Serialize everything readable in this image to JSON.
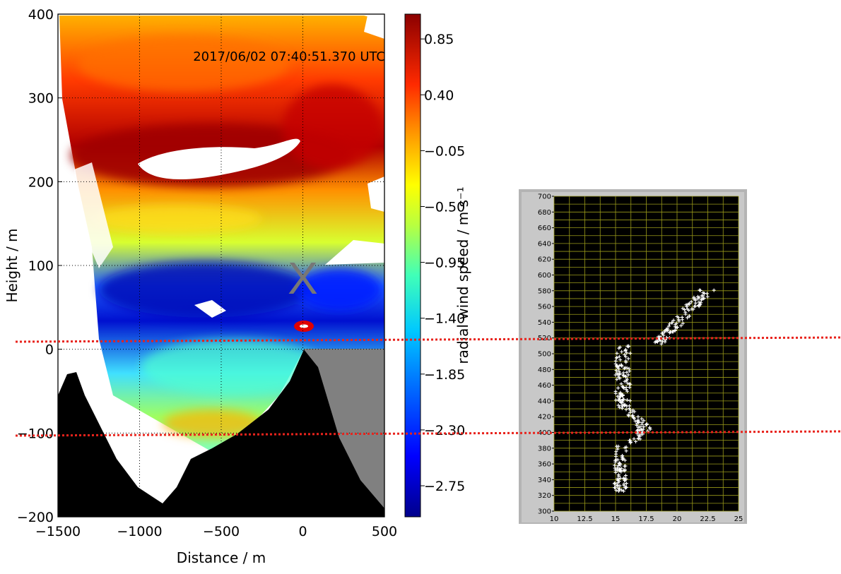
{
  "chart_data": [
    {
      "type": "heatmap",
      "title": "",
      "timestamp": "2017/06/02 07:40:51.370 UTC",
      "xlabel": "Distance / m",
      "ylabel": "Height / m",
      "xlim": [
        -1500,
        500
      ],
      "ylim": [
        -200,
        400
      ],
      "xticks": [
        -1500,
        -1000,
        -500,
        0,
        500
      ],
      "yticks": [
        -200,
        -100,
        0,
        100,
        200,
        300,
        400
      ],
      "xtick_labels": [
        "−1500",
        "−1000",
        "−500",
        "0",
        "500"
      ],
      "ytick_labels": [
        "−200",
        "−100",
        "0",
        "100",
        "200",
        "300",
        "400"
      ],
      "grid": true,
      "marker_label": "X",
      "marker_pos": {
        "distance": 0,
        "height": 85
      },
      "colorbar": {
        "label": "radial wind speed / m s⁻¹",
        "range": [
          -3.0,
          1.05
        ],
        "ticks": [
          0.85,
          0.4,
          -0.05,
          -0.5,
          -0.95,
          -1.4,
          -1.85,
          -2.3,
          -2.75
        ],
        "tick_labels": [
          "0.85",
          "0.40",
          "−0.05",
          "−0.50",
          "−0.95",
          "−1.40",
          "−1.85",
          "−2.30",
          "−2.75"
        ]
      },
      "reference_lines_height": [
        10,
        -100
      ],
      "colors": {
        "terrain": "#000000",
        "masked": "#808080",
        "ref_line": "#e8231c"
      }
    },
    {
      "type": "scatter",
      "xlim": [
        10,
        25
      ],
      "ylim": [
        300,
        700
      ],
      "xticks": [
        10,
        12.5,
        15,
        17.5,
        20,
        22.5,
        25
      ],
      "xtick_labels": [
        "10",
        "12.5",
        "15",
        "17.5",
        "20",
        "22.5",
        "25"
      ],
      "yticks": [
        300,
        320,
        340,
        360,
        380,
        400,
        420,
        440,
        460,
        480,
        500,
        520,
        540,
        560,
        580,
        600,
        620,
        640,
        660,
        680,
        700
      ],
      "ytick_labels": [
        "300",
        "320",
        "340",
        "360",
        "380",
        "400",
        "420",
        "440",
        "460",
        "480",
        "500",
        "520",
        "540",
        "560",
        "580",
        "600",
        "620",
        "640",
        "660",
        "680",
        "700"
      ],
      "marker": "+",
      "point_color": "#ffffff",
      "background": "#000000",
      "grid_color": "#9a9a1a",
      "clusters": [
        {
          "x_center": 15.4,
          "x_spread": 1.0,
          "y_from": 325,
          "y_to": 385
        },
        {
          "x_center": 16.3,
          "x_spread": 1.0,
          "y_from": 385,
          "y_to": 440
        },
        {
          "x_center": 15.6,
          "x_spread": 1.2,
          "y_from": 440,
          "y_to": 512
        },
        {
          "x_center": 17.8,
          "x_spread": 1.0,
          "y_from": 512,
          "y_to": 522
        },
        {
          "x_center": 21.0,
          "x_spread": 1.2,
          "y_from": 522,
          "y_to": 582
        }
      ]
    }
  ]
}
